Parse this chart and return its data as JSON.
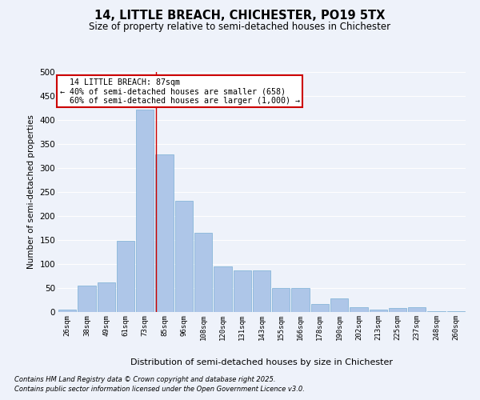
{
  "title_line1": "14, LITTLE BREACH, CHICHESTER, PO19 5TX",
  "title_line2": "Size of property relative to semi-detached houses in Chichester",
  "xlabel": "Distribution of semi-detached houses by size in Chichester",
  "ylabel": "Number of semi-detached properties",
  "categories": [
    "26sqm",
    "38sqm",
    "49sqm",
    "61sqm",
    "73sqm",
    "85sqm",
    "96sqm",
    "108sqm",
    "120sqm",
    "131sqm",
    "143sqm",
    "155sqm",
    "166sqm",
    "178sqm",
    "190sqm",
    "202sqm",
    "213sqm",
    "225sqm",
    "237sqm",
    "248sqm",
    "260sqm"
  ],
  "values": [
    5,
    55,
    62,
    148,
    422,
    328,
    232,
    165,
    95,
    87,
    87,
    50,
    50,
    17,
    29,
    10,
    5,
    8,
    10,
    2,
    1
  ],
  "bar_color": "#aec6e8",
  "bar_edge_color": "#7aafd4",
  "property_label": "14 LITTLE BREACH: 87sqm",
  "pct_smaller": "40%",
  "count_smaller": 658,
  "pct_larger": "60%",
  "count_larger": "1,000",
  "vline_color": "#cc0000",
  "annotation_box_color": "#cc0000",
  "ylim": [
    0,
    500
  ],
  "yticks": [
    0,
    50,
    100,
    150,
    200,
    250,
    300,
    350,
    400,
    450,
    500
  ],
  "background_color": "#eef2fa",
  "grid_color": "#ffffff",
  "footnote1": "Contains HM Land Registry data © Crown copyright and database right 2025.",
  "footnote2": "Contains public sector information licensed under the Open Government Licence v3.0.",
  "vline_x_index": 4.58
}
